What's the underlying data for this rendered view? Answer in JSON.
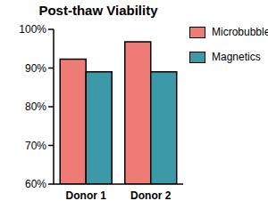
{
  "chart_data": {
    "type": "bar",
    "title": "Post-thaw Viability",
    "categories": [
      "Donor 1",
      "Donor 2"
    ],
    "series": [
      {
        "name": "Microbubbles",
        "color": "#ee7b74",
        "values": [
          92.3,
          96.8
        ]
      },
      {
        "name": "Magnetics",
        "color": "#3c9aa8",
        "values": [
          89,
          89
        ]
      }
    ],
    "ylim": [
      60,
      100
    ],
    "yticks": [
      {
        "value": 60,
        "label": "60%"
      },
      {
        "value": 70,
        "label": "70%"
      },
      {
        "value": 80,
        "label": "80%"
      },
      {
        "value": 90,
        "label": "90%"
      },
      {
        "value": 100,
        "label": "100%"
      }
    ],
    "grid": false,
    "legend": "right"
  }
}
